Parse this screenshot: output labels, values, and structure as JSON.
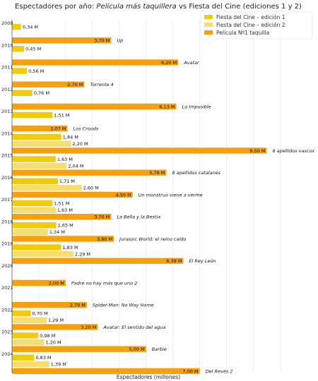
{
  "chart_data": {
    "type": "bar",
    "orientation": "horizontal",
    "title_parts": [
      {
        "text": "Espectadores por año: ",
        "italic": false
      },
      {
        "text": "Película más taquillera",
        "italic": true
      },
      {
        "text": " vs Fiesta del Cine (ediciones 1 y 2)",
        "italic": false
      }
    ],
    "xlabel": "Espectadores (millones)",
    "xlim": [
      0,
      10.2
    ],
    "grid": true,
    "legend": "top-right",
    "unit_suffix": " M",
    "categories": [
      "2009",
      "2010",
      "2011",
      "2012",
      "2013",
      "2014",
      "2015",
      "2016",
      "2017",
      "2018",
      "2019",
      "2020",
      "2021",
      "2022",
      "2023",
      "2024"
    ],
    "series": [
      {
        "name": "Fiesta del Cine – edición 1",
        "color": "#f2cc0c",
        "values": [
          0.34,
          0.45,
          0.56,
          0.76,
          1.51,
          1.84,
          1.63,
          1.71,
          1.51,
          1.65,
          1.83,
          null,
          null,
          0.7,
          0.98,
          0.83
        ]
      },
      {
        "name": "Fiesta del Cine – edición 2",
        "color": "#f7dc6f",
        "values": [
          null,
          null,
          null,
          null,
          null,
          2.2,
          2.04,
          2.6,
          1.63,
          1.34,
          2.29,
          null,
          null,
          1.29,
          1.2,
          1.39
        ]
      },
      {
        "name": "Película Nº1 taquilla",
        "color": "#f5a00f",
        "values": [
          3.7,
          6.2,
          2.7,
          6.13,
          2.07,
          9.5,
          5.76,
          4.5,
          3.7,
          3.8,
          6.39,
          2.0,
          2.79,
          3.2,
          5.0,
          7.0
        ]
      }
    ],
    "films": [
      "Up",
      "Avatar",
      "Torrente 4",
      "Lo Imposible",
      "Los Croods",
      "8 apellidos vascos",
      "8 apellidos catalanes",
      "Un monstruo viene a verme",
      "La Bella y la Bestia",
      "Jurassic World: el reino caído",
      "El Rey León",
      "Padre no hay más que uno 2",
      "Spider-Man: No Way Home",
      "Avatar: El sentido del agua",
      "Barbie",
      "Del Revés 2"
    ]
  }
}
